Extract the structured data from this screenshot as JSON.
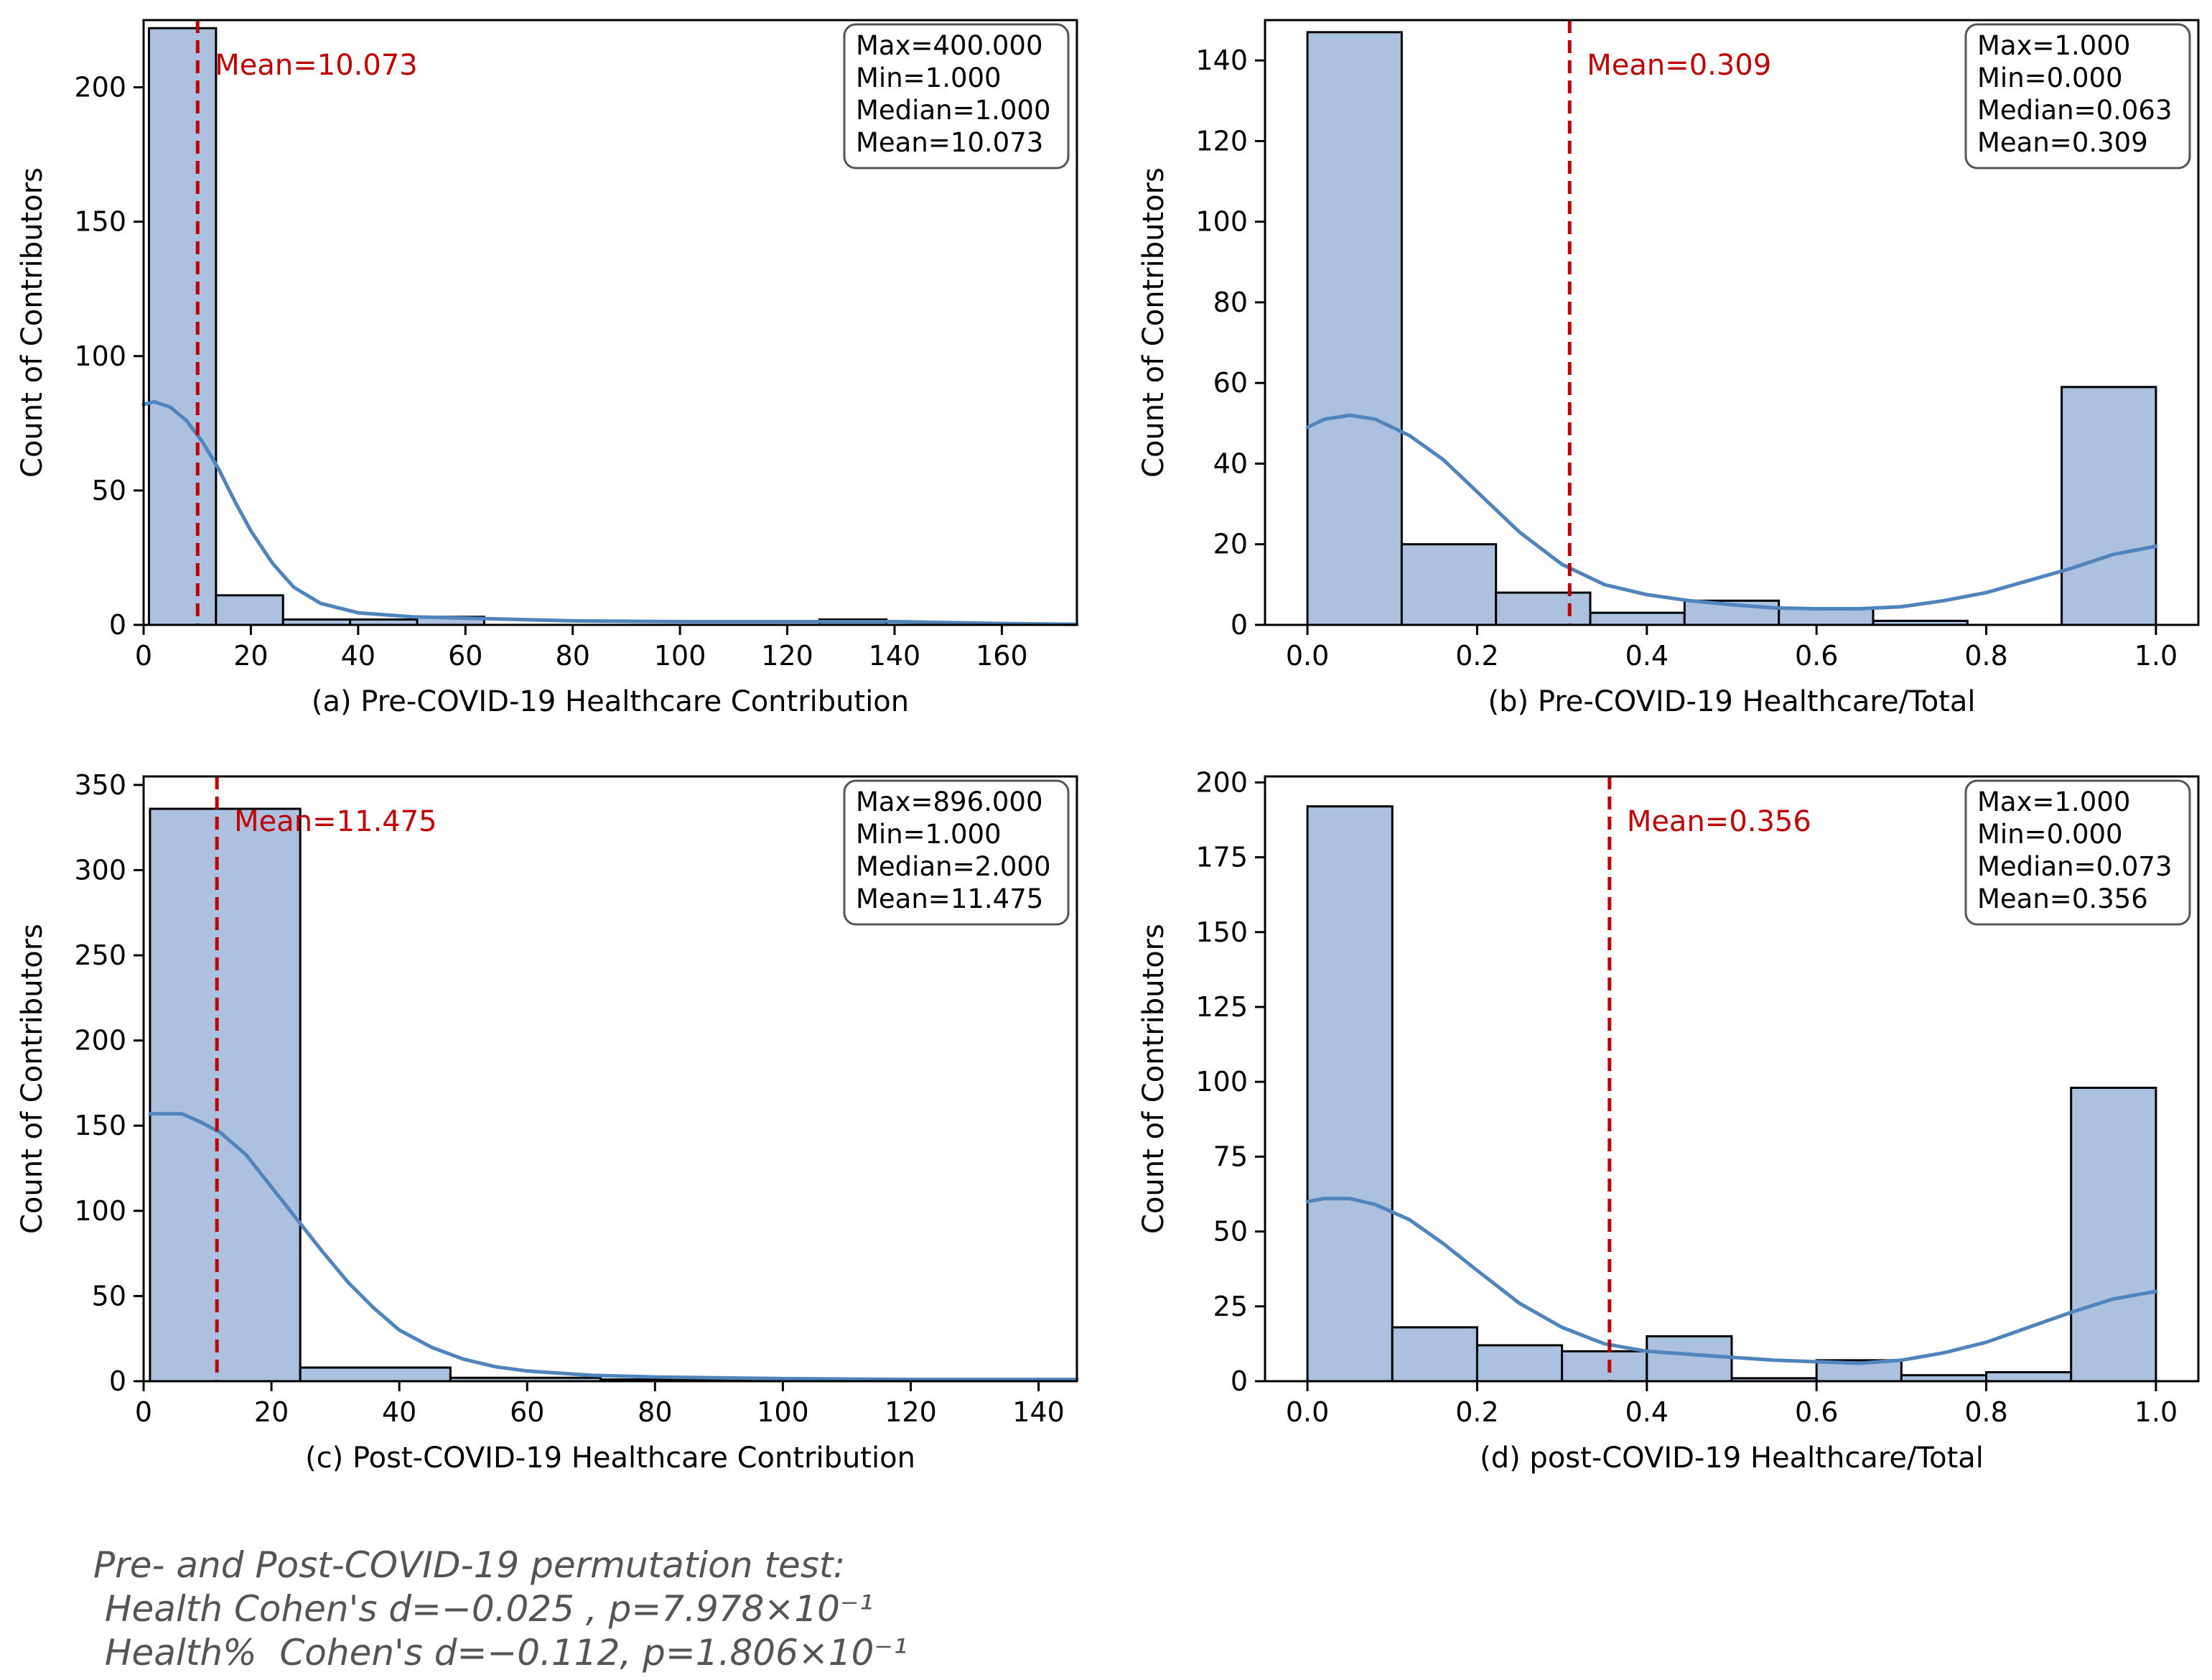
{
  "colors": {
    "bar_fill": "#abc1df",
    "bar_edge": "#000000",
    "kde": "#4f84bd",
    "mean_line": "#c00000",
    "footer_text": "#555555"
  },
  "chart_data": [
    {
      "id": "a",
      "type": "bar",
      "subtype": "histogram_with_kde",
      "xlabel": "(a) Pre-COVID-19 Healthcare Contribution",
      "ylabel": "Count of Contributors",
      "xlim": [
        0,
        174
      ],
      "ylim": [
        0,
        225
      ],
      "xticks": [
        0,
        20,
        40,
        60,
        80,
        100,
        120,
        140,
        160
      ],
      "yticks": [
        0,
        50,
        100,
        150,
        200
      ],
      "bins": [
        {
          "x0": 1,
          "x1": 13.5,
          "count": 222
        },
        {
          "x0": 13.5,
          "x1": 26,
          "count": 11
        },
        {
          "x0": 26,
          "x1": 38.5,
          "count": 2
        },
        {
          "x0": 38.5,
          "x1": 51,
          "count": 2
        },
        {
          "x0": 51,
          "x1": 63.5,
          "count": 3
        },
        {
          "x0": 63.5,
          "x1": 76,
          "count": 0
        },
        {
          "x0": 76,
          "x1": 88.5,
          "count": 0
        },
        {
          "x0": 88.5,
          "x1": 101,
          "count": 0
        },
        {
          "x0": 101,
          "x1": 113.5,
          "count": 0
        },
        {
          "x0": 113.5,
          "x1": 126,
          "count": 0
        },
        {
          "x0": 126,
          "x1": 138.5,
          "count": 2
        }
      ],
      "kde": [
        [
          0,
          82
        ],
        [
          2,
          83
        ],
        [
          5,
          81
        ],
        [
          8,
          76
        ],
        [
          11,
          68
        ],
        [
          14,
          58
        ],
        [
          17,
          46
        ],
        [
          20,
          35
        ],
        [
          24,
          23
        ],
        [
          28,
          14
        ],
        [
          33,
          8
        ],
        [
          40,
          4.5
        ],
        [
          50,
          3
        ],
        [
          60,
          2.5
        ],
        [
          80,
          1.5
        ],
        [
          100,
          1.2
        ],
        [
          120,
          1.2
        ],
        [
          140,
          1.2
        ],
        [
          160,
          0.5
        ],
        [
          174,
          0.2
        ]
      ],
      "mean": 10.073,
      "mean_label": "Mean=10.073",
      "stats": [
        "Max=400.000",
        "Min=1.000",
        "Median=1.000",
        "Mean=10.073"
      ]
    },
    {
      "id": "b",
      "type": "bar",
      "subtype": "histogram_with_kde",
      "xlabel": "(b) Pre-COVID-19 Healthcare/Total",
      "ylabel": "Count of Contributors",
      "xlim": [
        -0.05,
        1.05
      ],
      "ylim": [
        0,
        150
      ],
      "xticks": [
        0.0,
        0.2,
        0.4,
        0.6,
        0.8,
        1.0
      ],
      "xtick_labels": [
        "0.0",
        "0.2",
        "0.4",
        "0.6",
        "0.8",
        "1.0"
      ],
      "yticks": [
        0,
        20,
        40,
        60,
        80,
        100,
        120,
        140
      ],
      "bins": [
        {
          "x0": 0.0,
          "x1": 0.1111,
          "count": 147
        },
        {
          "x0": 0.1111,
          "x1": 0.2222,
          "count": 20
        },
        {
          "x0": 0.2222,
          "x1": 0.3333,
          "count": 8
        },
        {
          "x0": 0.3333,
          "x1": 0.4444,
          "count": 3
        },
        {
          "x0": 0.4444,
          "x1": 0.5556,
          "count": 6
        },
        {
          "x0": 0.5556,
          "x1": 0.6667,
          "count": 4
        },
        {
          "x0": 0.6667,
          "x1": 0.7778,
          "count": 1
        },
        {
          "x0": 0.7778,
          "x1": 0.8889,
          "count": 0
        },
        {
          "x0": 0.8889,
          "x1": 1.0,
          "count": 59
        }
      ],
      "kde": [
        [
          0.0,
          49
        ],
        [
          0.02,
          51
        ],
        [
          0.05,
          52
        ],
        [
          0.08,
          51
        ],
        [
          0.12,
          47
        ],
        [
          0.16,
          41
        ],
        [
          0.2,
          33
        ],
        [
          0.25,
          23
        ],
        [
          0.3,
          15
        ],
        [
          0.35,
          10
        ],
        [
          0.4,
          7.5
        ],
        [
          0.45,
          6
        ],
        [
          0.5,
          5
        ],
        [
          0.55,
          4.2
        ],
        [
          0.6,
          4
        ],
        [
          0.65,
          4
        ],
        [
          0.7,
          4.5
        ],
        [
          0.75,
          6
        ],
        [
          0.8,
          8
        ],
        [
          0.85,
          11
        ],
        [
          0.9,
          14
        ],
        [
          0.95,
          17.5
        ],
        [
          1.0,
          19.5
        ]
      ],
      "mean": 0.309,
      "mean_label": "Mean=0.309",
      "stats": [
        "Max=1.000",
        "Min=0.000",
        "Median=0.063",
        "Mean=0.309"
      ]
    },
    {
      "id": "c",
      "type": "bar",
      "subtype": "histogram_with_kde",
      "xlabel": "(c) Post-COVID-19 Healthcare Contribution",
      "ylabel": "Count of Contributors",
      "xlim": [
        0,
        146
      ],
      "ylim": [
        0,
        355
      ],
      "xticks": [
        0,
        20,
        40,
        60,
        80,
        100,
        120,
        140
      ],
      "yticks": [
        0,
        50,
        100,
        150,
        200,
        250,
        300,
        350
      ],
      "bins": [
        {
          "x0": 1,
          "x1": 24.5,
          "count": 336
        },
        {
          "x0": 24.5,
          "x1": 48,
          "count": 8
        },
        {
          "x0": 48,
          "x1": 71.5,
          "count": 2
        },
        {
          "x0": 71.5,
          "x1": 95,
          "count": 1
        },
        {
          "x0": 95,
          "x1": 118.5,
          "count": 0
        },
        {
          "x0": 118.5,
          "x1": 142,
          "count": 0
        }
      ],
      "kde": [
        [
          1,
          157
        ],
        [
          3,
          157
        ],
        [
          6,
          157
        ],
        [
          9,
          152
        ],
        [
          12,
          146
        ],
        [
          16,
          133
        ],
        [
          20,
          114
        ],
        [
          24,
          95
        ],
        [
          28,
          76
        ],
        [
          32,
          58
        ],
        [
          36,
          43
        ],
        [
          40,
          30
        ],
        [
          45,
          20
        ],
        [
          50,
          13
        ],
        [
          55,
          8.5
        ],
        [
          60,
          6
        ],
        [
          70,
          3.5
        ],
        [
          80,
          2.5
        ],
        [
          100,
          1.5
        ],
        [
          120,
          1
        ],
        [
          146,
          1
        ]
      ],
      "mean": 11.475,
      "mean_label": "Mean=11.475",
      "stats": [
        "Max=896.000",
        "Min=1.000",
        "Median=2.000",
        "Mean=11.475"
      ]
    },
    {
      "id": "d",
      "type": "bar",
      "subtype": "histogram_with_kde",
      "xlabel": "(d) post-COVID-19 Healthcare/Total",
      "ylabel": "Count of Contributors",
      "xlim": [
        -0.05,
        1.05
      ],
      "ylim": [
        0,
        202
      ],
      "xticks": [
        0.0,
        0.2,
        0.4,
        0.6,
        0.8,
        1.0
      ],
      "xtick_labels": [
        "0.0",
        "0.2",
        "0.4",
        "0.6",
        "0.8",
        "1.0"
      ],
      "yticks": [
        0,
        25,
        50,
        75,
        100,
        125,
        150,
        175,
        200
      ],
      "bins": [
        {
          "x0": 0.0,
          "x1": 0.1,
          "count": 192
        },
        {
          "x0": 0.1,
          "x1": 0.2,
          "count": 18
        },
        {
          "x0": 0.2,
          "x1": 0.3,
          "count": 12
        },
        {
          "x0": 0.3,
          "x1": 0.4,
          "count": 10
        },
        {
          "x0": 0.4,
          "x1": 0.5,
          "count": 15
        },
        {
          "x0": 0.5,
          "x1": 0.6,
          "count": 1
        },
        {
          "x0": 0.6,
          "x1": 0.7,
          "count": 7
        },
        {
          "x0": 0.7,
          "x1": 0.8,
          "count": 2
        },
        {
          "x0": 0.8,
          "x1": 0.9,
          "count": 3
        },
        {
          "x0": 0.9,
          "x1": 1.0,
          "count": 98
        }
      ],
      "kde": [
        [
          0.0,
          60
        ],
        [
          0.02,
          61
        ],
        [
          0.05,
          61
        ],
        [
          0.08,
          59
        ],
        [
          0.12,
          54
        ],
        [
          0.16,
          46
        ],
        [
          0.2,
          37
        ],
        [
          0.25,
          26
        ],
        [
          0.3,
          18
        ],
        [
          0.35,
          12.5
        ],
        [
          0.4,
          10
        ],
        [
          0.45,
          9
        ],
        [
          0.5,
          8
        ],
        [
          0.55,
          7
        ],
        [
          0.6,
          6.5
        ],
        [
          0.65,
          6
        ],
        [
          0.7,
          7
        ],
        [
          0.75,
          9.5
        ],
        [
          0.8,
          13
        ],
        [
          0.85,
          18
        ],
        [
          0.9,
          23
        ],
        [
          0.95,
          27.5
        ],
        [
          1.0,
          30
        ]
      ],
      "mean": 0.356,
      "mean_label": "Mean=0.356",
      "stats": [
        "Max=1.000",
        "Min=0.000",
        "Median=0.073",
        "Mean=0.356"
      ]
    }
  ],
  "footer": {
    "lines": [
      "Pre- and Post-COVID-19 permutation test:",
      " Health Cohen's d=−0.025 , p=7.978×10⁻¹",
      " Health%  Cohen's d=−0.112, p=1.806×10⁻¹"
    ]
  }
}
